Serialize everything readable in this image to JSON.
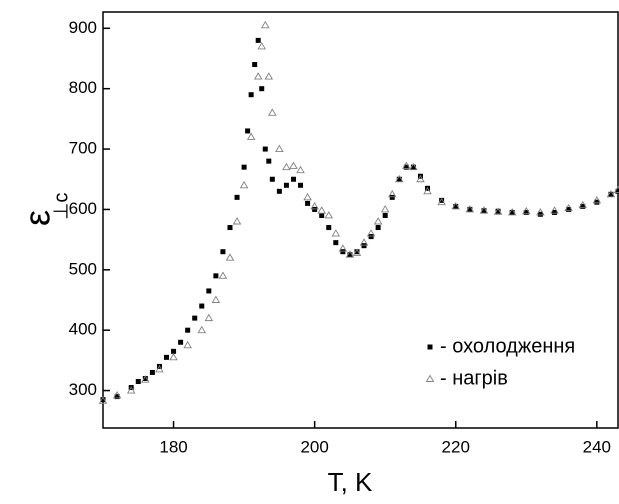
{
  "chart_data": {
    "type": "scatter",
    "xlabel": "T, K",
    "ylabel": "ε",
    "ylabel_sub": "⊥c",
    "xlim": [
      170,
      243
    ],
    "ylim": [
      238,
      927
    ],
    "xticks": [
      180,
      200,
      220,
      240
    ],
    "yticks": [
      300,
      400,
      500,
      600,
      700,
      800,
      900
    ],
    "legend": "lower right",
    "series": [
      {
        "name": "- охолодження",
        "color": "#000000",
        "marker": "square",
        "x": [
          170,
          172,
          174,
          175,
          176,
          177,
          178,
          179,
          180,
          181,
          182,
          183,
          184,
          185,
          186,
          187,
          188,
          189,
          190,
          190.5,
          191,
          191.5,
          192,
          192.5,
          193,
          193.5,
          194,
          195,
          196,
          197,
          198,
          199,
          200,
          201,
          202,
          203,
          204,
          205,
          206,
          207,
          208,
          209,
          210,
          211,
          212,
          213,
          214,
          215,
          216,
          218,
          220,
          222,
          224,
          226,
          228,
          230,
          232,
          234,
          236,
          238,
          240,
          242,
          243
        ],
        "values": [
          285,
          290,
          305,
          315,
          320,
          330,
          340,
          355,
          365,
          380,
          400,
          420,
          440,
          465,
          490,
          530,
          570,
          620,
          670,
          730,
          790,
          840,
          880,
          800,
          700,
          680,
          650,
          630,
          640,
          650,
          640,
          610,
          600,
          590,
          570,
          545,
          530,
          525,
          530,
          540,
          555,
          570,
          590,
          620,
          650,
          670,
          670,
          655,
          635,
          615,
          605,
          600,
          598,
          597,
          595,
          595,
          592,
          595,
          600,
          605,
          612,
          625,
          630
        ]
      },
      {
        "name": "- нагрів",
        "color": "#808080",
        "marker": "triangle",
        "x": [
          170,
          172,
          174,
          176,
          178,
          180,
          182,
          184,
          185,
          186,
          187,
          188,
          189,
          190,
          191,
          192,
          192.5,
          193,
          193.5,
          194,
          195,
          196,
          197,
          198,
          199,
          200,
          201,
          202,
          203,
          204,
          205,
          206,
          207,
          208,
          209,
          210,
          211,
          212,
          213,
          214,
          215,
          216,
          218,
          220,
          222,
          224,
          226,
          228,
          230,
          232,
          234,
          236,
          238,
          240,
          242,
          243
        ],
        "values": [
          283,
          292,
          300,
          318,
          335,
          355,
          375,
          400,
          420,
          450,
          490,
          520,
          580,
          640,
          720,
          820,
          870,
          905,
          820,
          760,
          700,
          670,
          672,
          665,
          620,
          605,
          598,
          590,
          560,
          535,
          525,
          528,
          545,
          560,
          580,
          600,
          625,
          650,
          672,
          670,
          650,
          630,
          612,
          605,
          600,
          598,
          596,
          595,
          597,
          595,
          598,
          602,
          607,
          615,
          625,
          632
        ]
      }
    ]
  }
}
